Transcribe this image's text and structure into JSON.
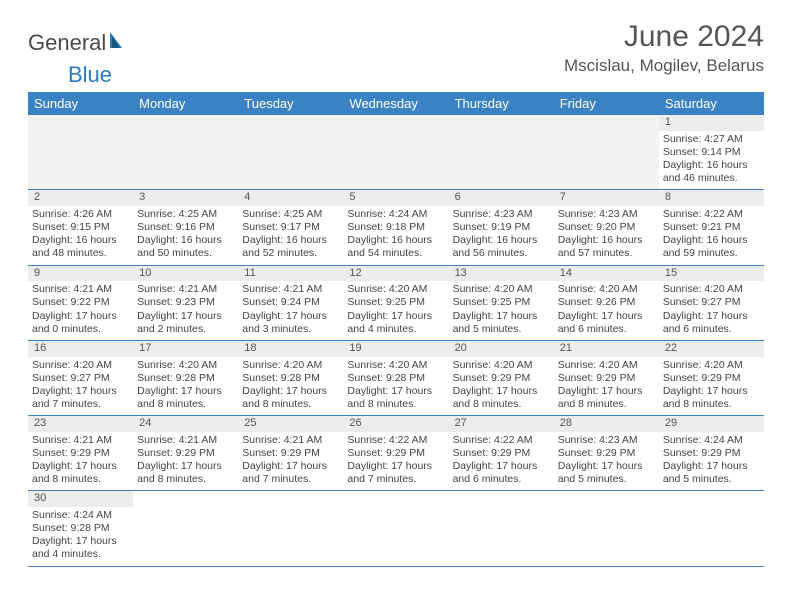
{
  "brand": {
    "part1": "General",
    "part2": "Blue"
  },
  "title": "June 2024",
  "location": "Mscislau, Mogilev, Belarus",
  "colors": {
    "header_bg": "#3b82c4",
    "header_text": "#ffffff",
    "daynum_bg": "#ececec",
    "rule": "#3b82c4",
    "body_text": "#444444",
    "title_text": "#555555"
  },
  "weekdays": [
    "Sunday",
    "Monday",
    "Tuesday",
    "Wednesday",
    "Thursday",
    "Friday",
    "Saturday"
  ],
  "weeks": [
    [
      null,
      null,
      null,
      null,
      null,
      null,
      {
        "n": "1",
        "sr": "Sunrise: 4:27 AM",
        "ss": "Sunset: 9:14 PM",
        "dl1": "Daylight: 16 hours",
        "dl2": "and 46 minutes."
      }
    ],
    [
      {
        "n": "2",
        "sr": "Sunrise: 4:26 AM",
        "ss": "Sunset: 9:15 PM",
        "dl1": "Daylight: 16 hours",
        "dl2": "and 48 minutes."
      },
      {
        "n": "3",
        "sr": "Sunrise: 4:25 AM",
        "ss": "Sunset: 9:16 PM",
        "dl1": "Daylight: 16 hours",
        "dl2": "and 50 minutes."
      },
      {
        "n": "4",
        "sr": "Sunrise: 4:25 AM",
        "ss": "Sunset: 9:17 PM",
        "dl1": "Daylight: 16 hours",
        "dl2": "and 52 minutes."
      },
      {
        "n": "5",
        "sr": "Sunrise: 4:24 AM",
        "ss": "Sunset: 9:18 PM",
        "dl1": "Daylight: 16 hours",
        "dl2": "and 54 minutes."
      },
      {
        "n": "6",
        "sr": "Sunrise: 4:23 AM",
        "ss": "Sunset: 9:19 PM",
        "dl1": "Daylight: 16 hours",
        "dl2": "and 56 minutes."
      },
      {
        "n": "7",
        "sr": "Sunrise: 4:23 AM",
        "ss": "Sunset: 9:20 PM",
        "dl1": "Daylight: 16 hours",
        "dl2": "and 57 minutes."
      },
      {
        "n": "8",
        "sr": "Sunrise: 4:22 AM",
        "ss": "Sunset: 9:21 PM",
        "dl1": "Daylight: 16 hours",
        "dl2": "and 59 minutes."
      }
    ],
    [
      {
        "n": "9",
        "sr": "Sunrise: 4:21 AM",
        "ss": "Sunset: 9:22 PM",
        "dl1": "Daylight: 17 hours",
        "dl2": "and 0 minutes."
      },
      {
        "n": "10",
        "sr": "Sunrise: 4:21 AM",
        "ss": "Sunset: 9:23 PM",
        "dl1": "Daylight: 17 hours",
        "dl2": "and 2 minutes."
      },
      {
        "n": "11",
        "sr": "Sunrise: 4:21 AM",
        "ss": "Sunset: 9:24 PM",
        "dl1": "Daylight: 17 hours",
        "dl2": "and 3 minutes."
      },
      {
        "n": "12",
        "sr": "Sunrise: 4:20 AM",
        "ss": "Sunset: 9:25 PM",
        "dl1": "Daylight: 17 hours",
        "dl2": "and 4 minutes."
      },
      {
        "n": "13",
        "sr": "Sunrise: 4:20 AM",
        "ss": "Sunset: 9:25 PM",
        "dl1": "Daylight: 17 hours",
        "dl2": "and 5 minutes."
      },
      {
        "n": "14",
        "sr": "Sunrise: 4:20 AM",
        "ss": "Sunset: 9:26 PM",
        "dl1": "Daylight: 17 hours",
        "dl2": "and 6 minutes."
      },
      {
        "n": "15",
        "sr": "Sunrise: 4:20 AM",
        "ss": "Sunset: 9:27 PM",
        "dl1": "Daylight: 17 hours",
        "dl2": "and 6 minutes."
      }
    ],
    [
      {
        "n": "16",
        "sr": "Sunrise: 4:20 AM",
        "ss": "Sunset: 9:27 PM",
        "dl1": "Daylight: 17 hours",
        "dl2": "and 7 minutes."
      },
      {
        "n": "17",
        "sr": "Sunrise: 4:20 AM",
        "ss": "Sunset: 9:28 PM",
        "dl1": "Daylight: 17 hours",
        "dl2": "and 8 minutes."
      },
      {
        "n": "18",
        "sr": "Sunrise: 4:20 AM",
        "ss": "Sunset: 9:28 PM",
        "dl1": "Daylight: 17 hours",
        "dl2": "and 8 minutes."
      },
      {
        "n": "19",
        "sr": "Sunrise: 4:20 AM",
        "ss": "Sunset: 9:28 PM",
        "dl1": "Daylight: 17 hours",
        "dl2": "and 8 minutes."
      },
      {
        "n": "20",
        "sr": "Sunrise: 4:20 AM",
        "ss": "Sunset: 9:29 PM",
        "dl1": "Daylight: 17 hours",
        "dl2": "and 8 minutes."
      },
      {
        "n": "21",
        "sr": "Sunrise: 4:20 AM",
        "ss": "Sunset: 9:29 PM",
        "dl1": "Daylight: 17 hours",
        "dl2": "and 8 minutes."
      },
      {
        "n": "22",
        "sr": "Sunrise: 4:20 AM",
        "ss": "Sunset: 9:29 PM",
        "dl1": "Daylight: 17 hours",
        "dl2": "and 8 minutes."
      }
    ],
    [
      {
        "n": "23",
        "sr": "Sunrise: 4:21 AM",
        "ss": "Sunset: 9:29 PM",
        "dl1": "Daylight: 17 hours",
        "dl2": "and 8 minutes."
      },
      {
        "n": "24",
        "sr": "Sunrise: 4:21 AM",
        "ss": "Sunset: 9:29 PM",
        "dl1": "Daylight: 17 hours",
        "dl2": "and 8 minutes."
      },
      {
        "n": "25",
        "sr": "Sunrise: 4:21 AM",
        "ss": "Sunset: 9:29 PM",
        "dl1": "Daylight: 17 hours",
        "dl2": "and 7 minutes."
      },
      {
        "n": "26",
        "sr": "Sunrise: 4:22 AM",
        "ss": "Sunset: 9:29 PM",
        "dl1": "Daylight: 17 hours",
        "dl2": "and 7 minutes."
      },
      {
        "n": "27",
        "sr": "Sunrise: 4:22 AM",
        "ss": "Sunset: 9:29 PM",
        "dl1": "Daylight: 17 hours",
        "dl2": "and 6 minutes."
      },
      {
        "n": "28",
        "sr": "Sunrise: 4:23 AM",
        "ss": "Sunset: 9:29 PM",
        "dl1": "Daylight: 17 hours",
        "dl2": "and 5 minutes."
      },
      {
        "n": "29",
        "sr": "Sunrise: 4:24 AM",
        "ss": "Sunset: 9:29 PM",
        "dl1": "Daylight: 17 hours",
        "dl2": "and 5 minutes."
      }
    ],
    [
      {
        "n": "30",
        "sr": "Sunrise: 4:24 AM",
        "ss": "Sunset: 9:28 PM",
        "dl1": "Daylight: 17 hours",
        "dl2": "and 4 minutes."
      },
      null,
      null,
      null,
      null,
      null,
      null
    ]
  ]
}
